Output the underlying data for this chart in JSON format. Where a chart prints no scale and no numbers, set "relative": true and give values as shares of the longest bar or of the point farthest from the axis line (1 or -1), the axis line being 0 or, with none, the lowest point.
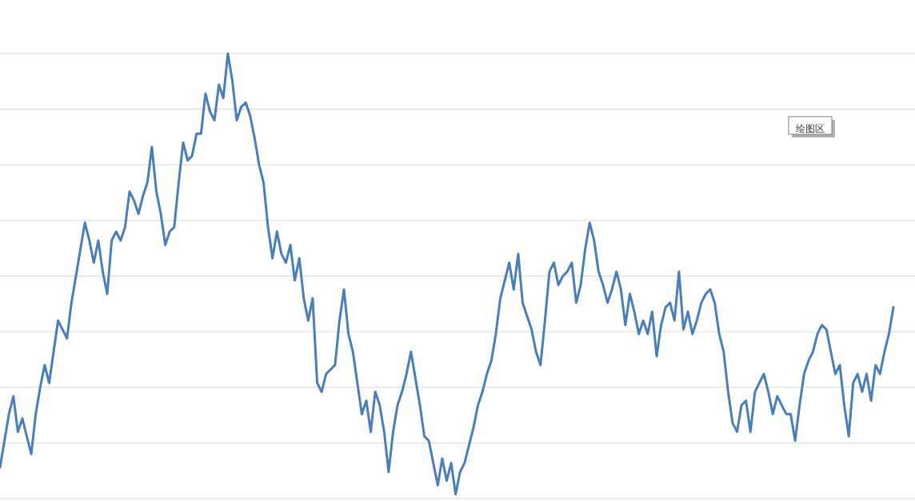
{
  "chart_data": {
    "type": "line",
    "relative": true,
    "grid": true,
    "marker": "none",
    "line_style": "solid",
    "annotations": [
      "绘图区"
    ],
    "categories": [
      null,
      null,
      null,
      null,
      null,
      null,
      null,
      null,
      null,
      null,
      null,
      null,
      null,
      null,
      null,
      null,
      null,
      null,
      null,
      null,
      null,
      null,
      null,
      null,
      null,
      null,
      null,
      null,
      null,
      null,
      null,
      null,
      null,
      null,
      null,
      null,
      null,
      null,
      null,
      null,
      null,
      null,
      null,
      null,
      null,
      null,
      null,
      null,
      null,
      null,
      null,
      null,
      null,
      null,
      null,
      null,
      null,
      null,
      null,
      null,
      null,
      null,
      null,
      null,
      null,
      null,
      null,
      null,
      null,
      null,
      null,
      null,
      null,
      null,
      null,
      null,
      null,
      null,
      null,
      null,
      null,
      null,
      null,
      null,
      null,
      null,
      null,
      null,
      null,
      null,
      null,
      null,
      null,
      null,
      null,
      null,
      null,
      null,
      null,
      null,
      null,
      null,
      null,
      null,
      null,
      null,
      null,
      null,
      null,
      null,
      null,
      null,
      null,
      null,
      null,
      null,
      null,
      null,
      null,
      null,
      null,
      null,
      null,
      null,
      null,
      null,
      null,
      null,
      null,
      null,
      null,
      null,
      null,
      null,
      null,
      null,
      null,
      null,
      null,
      null,
      null,
      null,
      null,
      null,
      null,
      null,
      null,
      null,
      null,
      null,
      null,
      null,
      null,
      null,
      null,
      null,
      null,
      null,
      null,
      null,
      null,
      null,
      null,
      null,
      null,
      null,
      null,
      null,
      null,
      null,
      null,
      null,
      null,
      null,
      null,
      null,
      null,
      null,
      null,
      null,
      null,
      null,
      null,
      null,
      null,
      null,
      null,
      null,
      null,
      null,
      null,
      null,
      null,
      null,
      null,
      null,
      null,
      null,
      null,
      null,
      null
    ],
    "series": [
      {
        "color": "#4a7ebb",
        "values": [
          0.07,
          0.13,
          0.19,
          0.23,
          0.15,
          0.18,
          0.14,
          0.1,
          0.19,
          0.25,
          0.3,
          0.26,
          0.33,
          0.4,
          0.38,
          0.36,
          0.44,
          0.5,
          0.56,
          0.62,
          0.58,
          0.53,
          0.58,
          0.51,
          0.46,
          0.58,
          0.6,
          0.58,
          0.61,
          0.69,
          0.67,
          0.64,
          0.68,
          0.71,
          0.79,
          0.69,
          0.64,
          0.57,
          0.6,
          0.61,
          0.71,
          0.8,
          0.76,
          0.77,
          0.82,
          0.82,
          0.91,
          0.87,
          0.85,
          0.93,
          0.9,
          1.0,
          0.94,
          0.85,
          0.88,
          0.89,
          0.86,
          0.81,
          0.75,
          0.71,
          0.61,
          0.54,
          0.6,
          0.55,
          0.53,
          0.57,
          0.49,
          0.54,
          0.45,
          0.4,
          0.45,
          0.26,
          0.24,
          0.28,
          0.29,
          0.3,
          0.4,
          0.47,
          0.37,
          0.33,
          0.26,
          0.19,
          0.22,
          0.15,
          0.24,
          0.21,
          0.15,
          0.06,
          0.15,
          0.21,
          0.24,
          0.28,
          0.33,
          0.27,
          0.21,
          0.14,
          0.13,
          0.08,
          0.03,
          0.09,
          0.04,
          0.08,
          0.01,
          0.06,
          0.08,
          0.12,
          0.16,
          0.21,
          0.24,
          0.28,
          0.31,
          0.37,
          0.45,
          0.49,
          0.53,
          0.47,
          0.55,
          0.44,
          0.41,
          0.38,
          0.33,
          0.3,
          0.4,
          0.51,
          0.53,
          0.48,
          0.5,
          0.51,
          0.53,
          0.44,
          0.48,
          0.56,
          0.62,
          0.58,
          0.51,
          0.48,
          0.44,
          0.47,
          0.51,
          0.47,
          0.39,
          0.46,
          0.42,
          0.37,
          0.4,
          0.37,
          0.42,
          0.32,
          0.39,
          0.43,
          0.44,
          0.4,
          0.51,
          0.38,
          0.42,
          0.37,
          0.4,
          0.44,
          0.46,
          0.47,
          0.44,
          0.37,
          0.33,
          0.24,
          0.17,
          0.15,
          0.21,
          0.22,
          0.15,
          0.24,
          0.26,
          0.28,
          0.24,
          0.19,
          0.23,
          0.21,
          0.19,
          0.19,
          0.13,
          0.21,
          0.28,
          0.31,
          0.33,
          0.37,
          0.39,
          0.38,
          0.33,
          0.28,
          0.3,
          0.21,
          0.14,
          0.26,
          0.28,
          0.24,
          0.28,
          0.22,
          0.3,
          0.28,
          0.33,
          0.37,
          0.43
        ]
      }
    ]
  }
}
